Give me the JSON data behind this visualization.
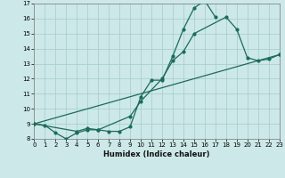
{
  "xlabel": "Humidex (Indice chaleur)",
  "xlim": [
    0,
    23
  ],
  "ylim": [
    8,
    17
  ],
  "yticks": [
    8,
    9,
    10,
    11,
    12,
    13,
    14,
    15,
    16,
    17
  ],
  "xticks": [
    0,
    1,
    2,
    3,
    4,
    5,
    6,
    7,
    8,
    9,
    10,
    11,
    12,
    13,
    14,
    15,
    16,
    17,
    18,
    19,
    20,
    21,
    22,
    23
  ],
  "background_color": "#cde8e8",
  "grid_color": "#aacfcf",
  "line_color": "#1a6b5a",
  "line1_x": [
    0,
    1,
    2,
    3,
    4,
    5,
    6,
    7,
    8,
    9,
    10,
    11,
    12,
    13,
    14,
    15,
    16,
    17
  ],
  "line1_y": [
    9.0,
    8.9,
    8.4,
    8.0,
    8.4,
    8.6,
    8.6,
    8.5,
    8.5,
    8.8,
    10.8,
    11.9,
    11.9,
    13.5,
    15.3,
    16.7,
    17.2,
    16.1
  ],
  "line2_x": [
    0,
    4,
    5,
    6,
    9,
    10,
    12,
    13,
    14,
    15,
    18,
    19,
    20,
    21,
    22,
    23
  ],
  "line2_y": [
    9.0,
    8.5,
    8.7,
    8.6,
    9.5,
    10.5,
    12.0,
    13.2,
    13.8,
    15.0,
    16.1,
    15.3,
    13.4,
    13.2,
    13.3,
    13.6
  ],
  "line3_x": [
    0,
    23
  ],
  "line3_y": [
    9.0,
    13.6
  ],
  "lw": 0.9,
  "ms": 2.0
}
